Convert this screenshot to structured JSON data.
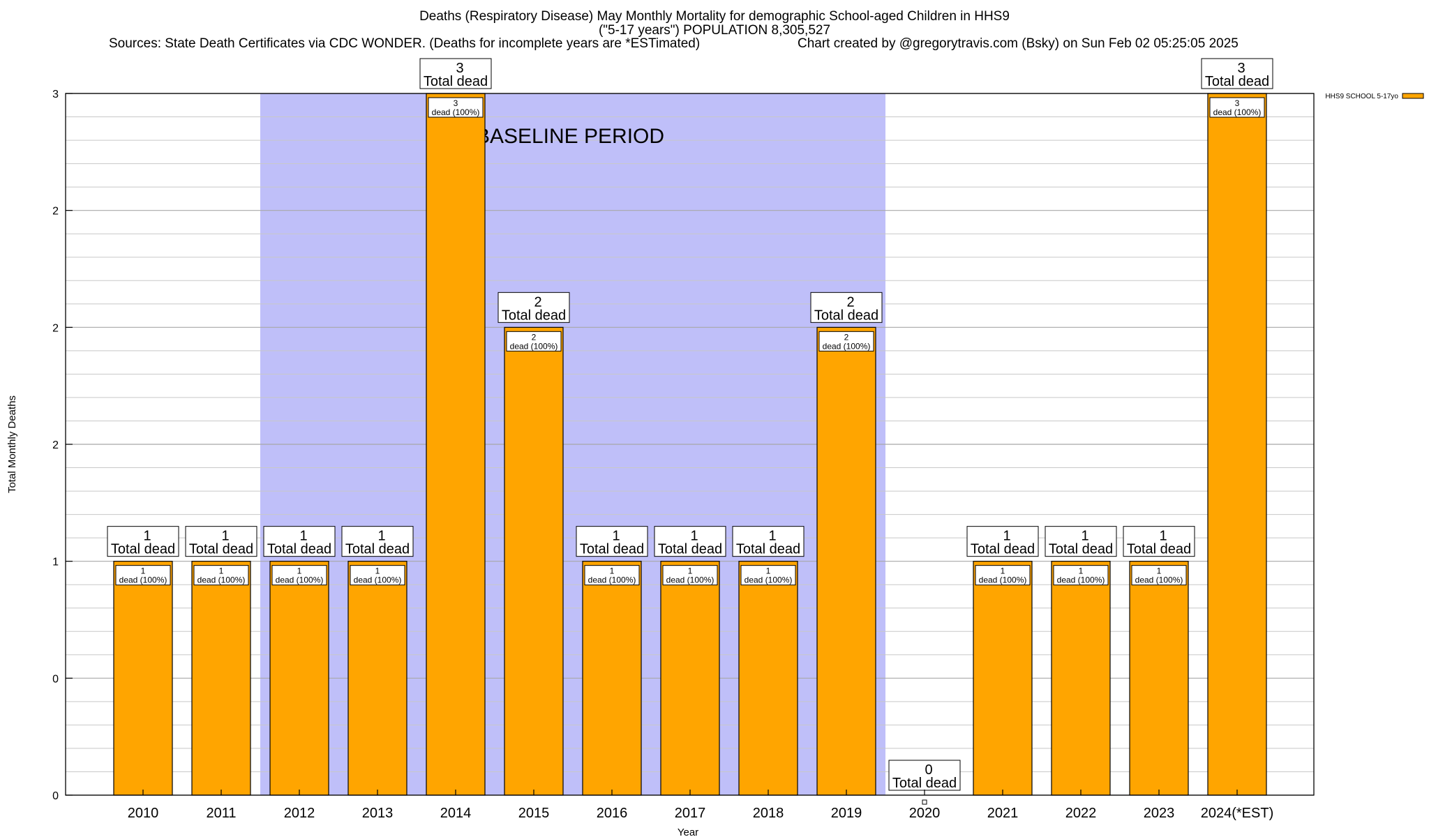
{
  "chart_data": {
    "type": "bar",
    "title": "Deaths (Respiratory Disease) May Monthly Mortality for demographic School-aged Children in HHS9",
    "subtitle": "(\"5-17 years\") POPULATION 8,305,527",
    "source_note": "Sources: State Death Certificates via CDC WONDER. (Deaths for incomplete years are *ESTimated)",
    "credit": "Chart created by @gregorytravis.com (Bsky) on Sun Feb 02 05:25:05 2025",
    "xlabel": "Year",
    "ylabel": "Total Monthly Deaths",
    "categories": [
      "2010",
      "2011",
      "2012",
      "2013",
      "2014",
      "2015",
      "2016",
      "2017",
      "2018",
      "2019",
      "2020",
      "2021",
      "2022",
      "2023",
      "2024(*EST)"
    ],
    "series": [
      {
        "name": "HHS9 SCHOOL 5-17yo",
        "values": [
          1,
          1,
          1,
          1,
          3,
          2,
          1,
          1,
          1,
          2,
          0,
          1,
          1,
          1,
          3
        ]
      }
    ],
    "ylim": [
      0,
      3
    ],
    "yticks": [
      0,
      0.5,
      1,
      1.5,
      2,
      2.5,
      3
    ],
    "ytick_labels": [
      "0",
      "0",
      "1",
      "2",
      "2",
      "2",
      "3"
    ],
    "total_label_suffix": "Total dead",
    "inner_label_suffix": "dead (100%)",
    "baseline": {
      "label": "BASELINE PERIOD",
      "from": "2012",
      "to": "2019"
    },
    "legend_position": "top-right",
    "grid": true,
    "colors": {
      "bar": "#ffa500",
      "baseline": "#bfbff9",
      "grid": "#c8c8c8"
    }
  }
}
